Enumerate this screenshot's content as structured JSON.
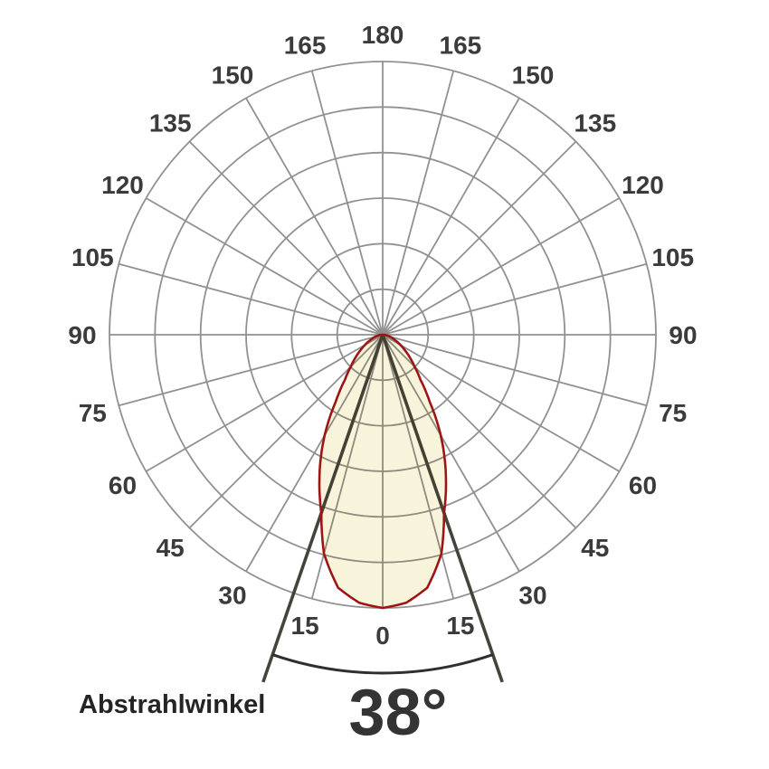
{
  "chart_data": {
    "type": "polar-intensity-distribution",
    "title": "",
    "angle_unit": "degrees",
    "angle_tick_step_deg": 15,
    "angle_tick_labels": [
      "0",
      "15",
      "30",
      "45",
      "60",
      "75",
      "90",
      "105",
      "120",
      "135",
      "150",
      "165",
      "180"
    ],
    "rings": 6,
    "grid_full_circle": true,
    "curve": {
      "name": "relative-luminous-intensity",
      "angles_deg": [
        0,
        5,
        10,
        15,
        19,
        25,
        30,
        35,
        40,
        45,
        50,
        55,
        60,
        65,
        70,
        75,
        80,
        85,
        90
      ],
      "relative_intensity": [
        1.0,
        0.985,
        0.94,
        0.83,
        0.69,
        0.545,
        0.425,
        0.3,
        0.215,
        0.165,
        0.13,
        0.1,
        0.075,
        0.055,
        0.04,
        0.028,
        0.018,
        0.009,
        0
      ]
    },
    "beam_angle_deg": 38,
    "beam_half_angle_deg": 19,
    "colors": {
      "grid": "#919191",
      "tick_text": "#3b3b3b",
      "curve_stroke": "#9e1515",
      "curve_fill": "#f8f4dc",
      "beam_lines": "#45443c",
      "arc": "#2f2f2f"
    }
  },
  "labels": {
    "caption": "Abstrahlwinkel",
    "value": "38°"
  }
}
